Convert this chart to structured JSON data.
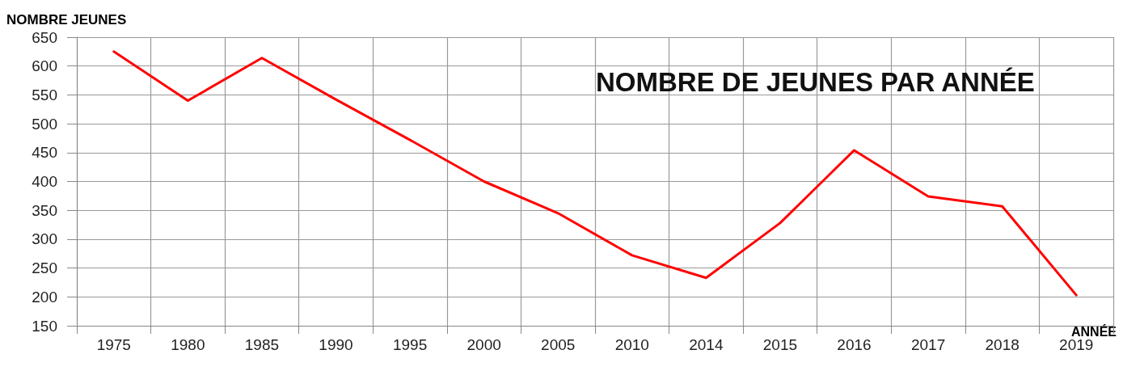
{
  "chart_data": {
    "type": "line",
    "title": "NOMBRE DE JEUNES PAR ANNÉE",
    "ylabel": "NOMBRE JEUNES",
    "xlabel": "ANNÉE",
    "categories": [
      "1975",
      "1980",
      "1985",
      "1990",
      "1995",
      "2000",
      "2005",
      "2010",
      "2014",
      "2015",
      "2016",
      "2017",
      "2018",
      "2019"
    ],
    "series": [
      {
        "color": "#ff0000",
        "values": [
          625,
          540,
          614,
          542,
          472,
          400,
          345,
          272,
          233,
          328,
          454,
          374,
          357,
          203
        ]
      }
    ],
    "ylim": [
      150,
      650
    ],
    "yticks": [
      150,
      200,
      250,
      300,
      350,
      400,
      450,
      500,
      550,
      600,
      650
    ],
    "grid": true,
    "marker": "none",
    "line_style": "solid"
  }
}
